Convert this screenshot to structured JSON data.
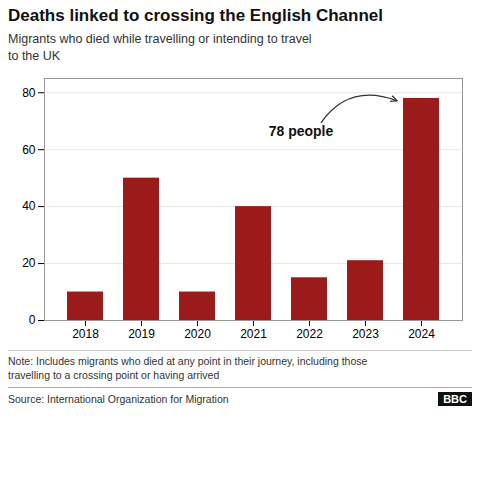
{
  "chart_data": {
    "type": "bar",
    "title": "Deaths linked to crossing the English Channel",
    "subtitle": "Migrants who died while travelling or intending to travel\nto the UK",
    "categories": [
      "2018",
      "2019",
      "2020",
      "2021",
      "2022",
      "2023",
      "2024"
    ],
    "values": [
      10,
      50,
      10,
      40,
      15,
      21,
      78
    ],
    "color": "#9b1a1a",
    "ylim": [
      0,
      85
    ],
    "yticks": [
      0,
      20,
      40,
      60,
      80
    ],
    "grid": true,
    "annotations": [
      {
        "text": "78 people",
        "x": "2024",
        "y": 77
      }
    ],
    "note": "Note: Includes migrants who died at any point in their journey, including those\ntravelling to a crossing point or having arrived",
    "source": "Source: International Organization for Migration",
    "credit": "BBC"
  }
}
